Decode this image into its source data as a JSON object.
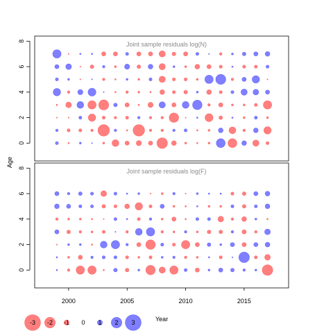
{
  "chart_data": {
    "type": "scatter",
    "panels": [
      {
        "title": "Joint sample residuals log(N)",
        "xlim": [
          1997.1,
          2018.8
        ],
        "ylim": [
          -1.4,
          8.4
        ],
        "yticks": [
          0,
          2,
          4,
          6,
          8
        ],
        "years": [
          1999,
          2000,
          2001,
          2002,
          2003,
          2004,
          2005,
          2006,
          2007,
          2008,
          2009,
          2010,
          2011,
          2012,
          2013,
          2014,
          2015,
          2016,
          2017
        ],
        "ages": [
          0,
          1,
          2,
          3,
          4,
          5,
          6,
          7
        ],
        "residuals": [
          [
            0.6,
            -0.3,
            0.4,
            0.2,
            -0.4,
            -1.3,
            -0.8,
            -1.0,
            -0.8,
            -2.0,
            -0.9,
            -0.4,
            -0.3,
            -0.4,
            1.7,
            -1.7,
            0.9,
            -1.2,
            -0.6
          ],
          [
            0.5,
            -0.6,
            -0.6,
            -0.5,
            -2.2,
            0.5,
            -0.3,
            -2.2,
            -0.5,
            -0.5,
            0.5,
            0.6,
            -0.3,
            -0.4,
            0.9,
            -1.3,
            -0.5,
            0.9,
            -1.4
          ],
          [
            -0.2,
            -0.1,
            0.6,
            -1.4,
            -0.6,
            -0.5,
            -0.6,
            0.5,
            -0.5,
            -0.5,
            -1.8,
            -0.2,
            0.3,
            -1.5,
            -0.7,
            0.3,
            -0.4,
            0.6,
            -0.4
          ],
          [
            -0.3,
            -1.1,
            1.3,
            -1.6,
            -1.9,
            0.7,
            -0.8,
            -0.3,
            -1.0,
            1.2,
            -0.8,
            1.3,
            1.8,
            -0.5,
            -0.8,
            -0.4,
            -0.4,
            -0.6,
            -1.6
          ],
          [
            1.4,
            -0.5,
            1.0,
            1.5,
            0.2,
            -0.3,
            -0.5,
            -0.4,
            -0.3,
            -0.9,
            -0.6,
            -0.7,
            0.4,
            -0.9,
            -0.6,
            0.6,
            1.2,
            1.1,
            0.8
          ],
          [
            0.6,
            0.4,
            -0.2,
            0.2,
            -0.5,
            -0.3,
            0.4,
            -0.4,
            0.6,
            -1.2,
            -0.6,
            -0.6,
            -0.4,
            1.6,
            1.9,
            -0.5,
            0.8,
            1.4,
            -0.2
          ],
          [
            0.8,
            1.1,
            -0.2,
            -0.7,
            0.5,
            -0.4,
            1.0,
            -0.7,
            0.9,
            -1.2,
            0.4,
            -0.4,
            -0.9,
            -0.8,
            -0.6,
            0.3,
            -0.6,
            -0.6,
            0.6
          ],
          [
            1.6,
            -0.1,
            0.3,
            0.3,
            -0.8,
            -0.8,
            0.6,
            -0.8,
            -0.8,
            -1.2,
            -0.7,
            -0.8,
            0.6,
            0.2,
            -0.5,
            0.4,
            0.7,
            0.8,
            0.9
          ]
        ]
      },
      {
        "title": "Joint sample residuals log(F)",
        "xlim": [
          1997.1,
          2018.8
        ],
        "ylim": [
          -1.4,
          8.4
        ],
        "yticks": [
          0,
          2,
          4,
          6,
          8
        ],
        "years": [
          1999,
          2000,
          2001,
          2002,
          2003,
          2004,
          2005,
          2006,
          2007,
          2008,
          2009,
          2010,
          2011,
          2012,
          2013,
          2014,
          2015,
          2016,
          2017
        ],
        "ages": [
          0,
          1,
          2,
          3,
          4,
          5,
          6
        ],
        "residuals": [
          [
            0.3,
            -0.5,
            -1.6,
            -1.6,
            -0.3,
            0.7,
            -0.7,
            0.4,
            -1.8,
            -1.2,
            -1.6,
            0.6,
            -0.8,
            0.4,
            0.8,
            0.7,
            0.5,
            0.4,
            -2.0
          ],
          [
            0.3,
            -0.4,
            -0.8,
            0.5,
            0.6,
            0.6,
            -0.6,
            -0.4,
            -0.6,
            0.4,
            0.5,
            -0.5,
            -0.4,
            0.3,
            -0.6,
            0.2,
            2.0,
            -0.6,
            -1.1
          ],
          [
            -0.2,
            0.4,
            0.4,
            -0.3,
            1.3,
            1.6,
            0.5,
            -0.8,
            -1.8,
            0.6,
            -0.6,
            -1.6,
            -0.8,
            0.7,
            0.4,
            0.8,
            -0.8,
            0.8,
            0.9
          ],
          [
            0.8,
            -0.7,
            -0.5,
            -0.4,
            -0.6,
            0.2,
            -0.5,
            1.3,
            1.6,
            -0.5,
            -0.4,
            0.5,
            -0.4,
            -0.7,
            -0.7,
            0.5,
            -0.8,
            -0.5,
            1.1
          ],
          [
            -0.5,
            -0.4,
            -0.4,
            -0.3,
            -0.2,
            0.6,
            0.3,
            -0.6,
            0.5,
            -0.4,
            -0.8,
            -0.3,
            0.6,
            0.6,
            -1.1,
            -0.5,
            -0.9,
            0.4,
            -0.3
          ],
          [
            0.9,
            0.8,
            0.6,
            0.6,
            -0.7,
            -0.6,
            -0.9,
            -1.4,
            -0.6,
            0.8,
            -0.4,
            -0.3,
            0.3,
            -0.4,
            -0.4,
            0.6,
            -0.7,
            0.6,
            0.9
          ],
          [
            0.8,
            0.5,
            0.7,
            0.6,
            -1.1,
            0.6,
            0.3,
            0.4,
            -0.2,
            -0.4,
            0.5,
            -0.2,
            0.4,
            0.3,
            0.3,
            -0.6,
            -0.7,
            0.8,
            0.9
          ]
        ]
      }
    ],
    "x_ticks": [
      2000,
      2005,
      2010,
      2015
    ],
    "xlabel": "Year",
    "ylabel": "Age",
    "legend": {
      "values": [
        -3,
        -2,
        -1,
        0,
        1,
        2,
        3
      ],
      "labels": [
        "-3",
        "-2",
        "-1",
        "0",
        "1",
        "2",
        "3"
      ]
    },
    "colors": {
      "positive": "#0000ff",
      "negative": "#ff0000",
      "fill_opacity": 0.5
    }
  }
}
